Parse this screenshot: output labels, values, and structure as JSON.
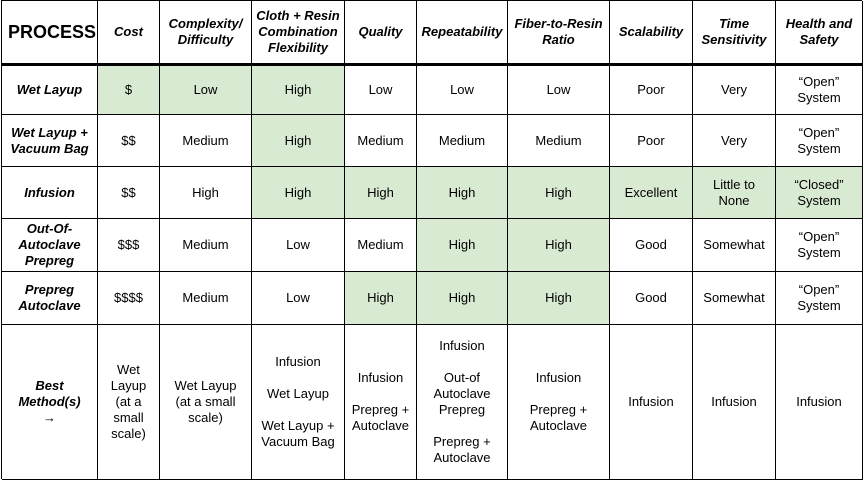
{
  "highlight_color": "#d9ead3",
  "headers": [
    "PROCESS",
    "Cost",
    "Complexity/\nDifficulty",
    "Cloth + Resin\nCombination\nFlexibility",
    "Quality",
    "Repeatability",
    "Fiber-to-Resin\nRatio",
    "Scalability",
    "Time\nSensitivity",
    "Health and\nSafety"
  ],
  "rows": [
    {
      "process": "Wet Layup",
      "cells": [
        "$",
        "Low",
        "High",
        "Low",
        "Low",
        "Low",
        "Poor",
        "Very",
        "“Open”\nSystem"
      ]
    },
    {
      "process": "Wet Layup +\nVacuum Bag",
      "cells": [
        "$$",
        "Medium",
        "High",
        "Medium",
        "Medium",
        "Medium",
        "Poor",
        "Very",
        "“Open”\nSystem"
      ]
    },
    {
      "process": "Infusion",
      "cells": [
        "$$",
        "High",
        "High",
        "High",
        "High",
        "High",
        "Excellent",
        "Little to\nNone",
        "“Closed”\nSystem"
      ]
    },
    {
      "process": "Out-Of-\nAutoclave\nPrepreg",
      "cells": [
        "$$$",
        "Medium",
        "Low",
        "Medium",
        "High",
        "High",
        "Good",
        "Somewhat",
        "“Open”\nSystem"
      ]
    },
    {
      "process": "Prepreg\nAutoclave",
      "cells": [
        "$$$$",
        "Medium",
        "Low",
        "High",
        "High",
        "High",
        "Good",
        "Somewhat",
        "“Open”\nSystem"
      ]
    }
  ],
  "best": {
    "label": "Best\nMethod(s)\n→",
    "cells": [
      "Wet\nLayup\n(at a\nsmall\nscale)",
      "Wet Layup\n(at a small\nscale)",
      "Infusion\n\nWet Layup\n\nWet Layup +\nVacuum Bag",
      "Infusion\n\nPrepreg +\nAutoclave",
      "Infusion\n\nOut-of\nAutoclave\nPrepreg\n\nPrepreg +\nAutoclave",
      "Infusion\n\nPrepreg +\nAutoclave",
      "Infusion",
      "Infusion",
      "Infusion"
    ]
  }
}
